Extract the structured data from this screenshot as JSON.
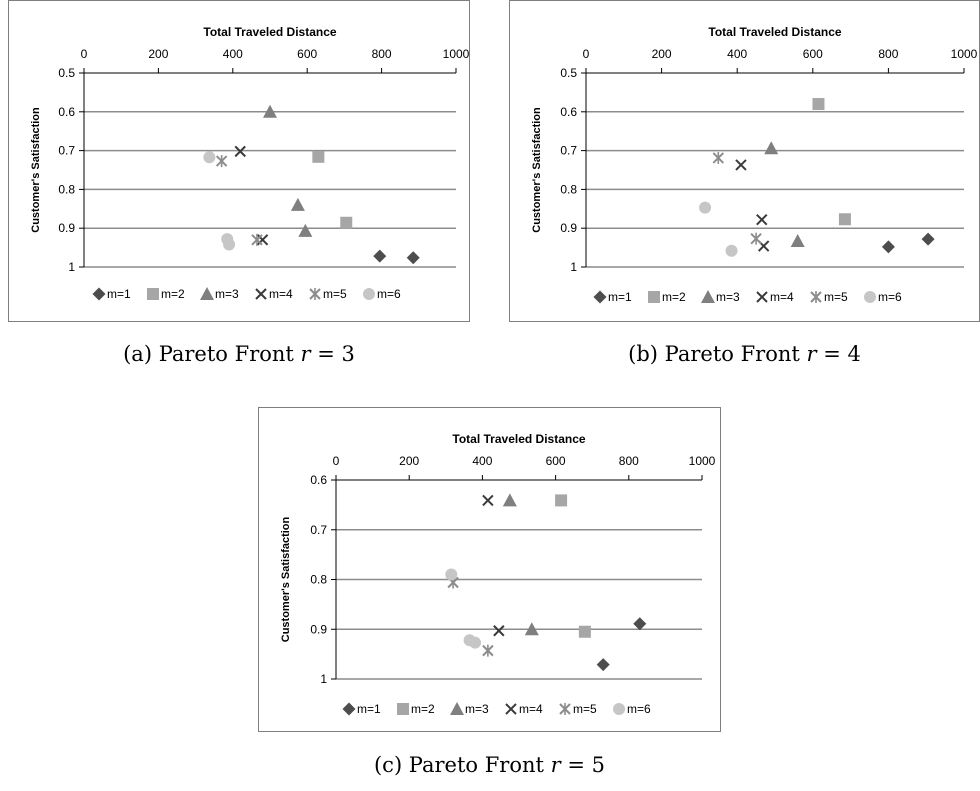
{
  "chart_data": [
    {
      "type": "scatter",
      "panel": "a",
      "title": "Total Traveled Distance",
      "ylabel": "Customer's Satisfaction",
      "xlim": [
        0,
        1000
      ],
      "ylim": [
        0.5,
        1
      ],
      "y_reversed": true,
      "x_axis_position": "top",
      "x_ticks": [
        0,
        200,
        400,
        600,
        800,
        1000
      ],
      "y_ticks": [
        0.5,
        0.6,
        0.7,
        0.8,
        0.9,
        1
      ],
      "y_tick_labels": [
        "0.5",
        "0.6",
        "0.7",
        "0.8",
        "0.9",
        "1"
      ],
      "grid": true,
      "legend": "bottom",
      "series": [
        {
          "name": "m=1",
          "marker": "diamond",
          "points": [
            [
              795,
              0.972
            ],
            [
              885,
              0.976
            ]
          ]
        },
        {
          "name": "m=2",
          "marker": "square",
          "points": [
            [
              630,
              0.716
            ],
            [
              705,
              0.886
            ]
          ]
        },
        {
          "name": "m=3",
          "marker": "triangle",
          "points": [
            [
              500,
              0.6
            ],
            [
              575,
              0.84
            ],
            [
              595,
              0.907
            ]
          ]
        },
        {
          "name": "m=4",
          "marker": "x",
          "points": [
            [
              420,
              0.702
            ],
            [
              480,
              0.93
            ]
          ]
        },
        {
          "name": "m=5",
          "marker": "star",
          "points": [
            [
              370,
              0.727
            ],
            [
              465,
              0.93
            ]
          ]
        },
        {
          "name": "m=6",
          "marker": "circle",
          "points": [
            [
              337,
              0.717
            ],
            [
              385,
              0.928
            ],
            [
              390,
              0.942
            ]
          ]
        }
      ]
    },
    {
      "type": "scatter",
      "panel": "b",
      "title": "Total Traveled Distance",
      "ylabel": "Customer's Satisfaction",
      "xlim": [
        0,
        1000
      ],
      "ylim": [
        0.5,
        1
      ],
      "y_reversed": true,
      "x_axis_position": "top",
      "x_ticks": [
        0,
        200,
        400,
        600,
        800,
        1000
      ],
      "y_ticks": [
        0.5,
        0.6,
        0.7,
        0.8,
        0.9,
        1
      ],
      "y_tick_labels": [
        "0.5",
        "0.6",
        "0.7",
        "0.8",
        "0.9",
        "1"
      ],
      "grid": true,
      "legend": "bottom",
      "series": [
        {
          "name": "m=1",
          "marker": "diamond",
          "points": [
            [
              800,
              0.948
            ],
            [
              905,
              0.928
            ]
          ]
        },
        {
          "name": "m=2",
          "marker": "square",
          "points": [
            [
              615,
              0.58
            ],
            [
              685,
              0.877
            ]
          ]
        },
        {
          "name": "m=3",
          "marker": "triangle",
          "points": [
            [
              490,
              0.694
            ],
            [
              560,
              0.933
            ]
          ]
        },
        {
          "name": "m=4",
          "marker": "x",
          "points": [
            [
              410,
              0.737
            ],
            [
              465,
              0.878
            ],
            [
              470,
              0.946
            ]
          ]
        },
        {
          "name": "m=5",
          "marker": "star",
          "points": [
            [
              350,
              0.719
            ],
            [
              450,
              0.927
            ]
          ]
        },
        {
          "name": "m=6",
          "marker": "circle",
          "points": [
            [
              315,
              0.847
            ],
            [
              385,
              0.958
            ]
          ]
        }
      ]
    },
    {
      "type": "scatter",
      "panel": "c",
      "title": "Total Traveled Distance",
      "ylabel": "Customer's Satisfaction",
      "xlim": [
        0,
        1000
      ],
      "ylim": [
        0.6,
        1
      ],
      "y_reversed": true,
      "x_axis_position": "top",
      "x_ticks": [
        0,
        200,
        400,
        600,
        800,
        1000
      ],
      "y_ticks": [
        0.6,
        0.7,
        0.8,
        0.9,
        1
      ],
      "y_tick_labels": [
        "0.6",
        "0.7",
        "0.8",
        "0.9",
        "1"
      ],
      "grid": true,
      "legend": "bottom",
      "series": [
        {
          "name": "m=1",
          "marker": "diamond",
          "points": [
            [
              730,
              0.971
            ],
            [
              830,
              0.889
            ]
          ]
        },
        {
          "name": "m=2",
          "marker": "square",
          "points": [
            [
              615,
              0.641
            ],
            [
              680,
              0.905
            ]
          ]
        },
        {
          "name": "m=3",
          "marker": "triangle",
          "points": [
            [
              475,
              0.641
            ],
            [
              535,
              0.9
            ]
          ]
        },
        {
          "name": "m=4",
          "marker": "x",
          "points": [
            [
              415,
              0.641
            ],
            [
              445,
              0.903
            ]
          ]
        },
        {
          "name": "m=5",
          "marker": "star",
          "points": [
            [
              320,
              0.806
            ],
            [
              415,
              0.943
            ]
          ]
        },
        {
          "name": "m=6",
          "marker": "circle",
          "points": [
            [
              315,
              0.79
            ],
            [
              365,
              0.922
            ],
            [
              380,
              0.927
            ]
          ]
        }
      ]
    }
  ],
  "colors": {
    "m=1": "#4d4d4d",
    "m=2": "#a6a6a6",
    "m=3": "#7f7f7f",
    "m=4": "#3a3a3a",
    "m=5": "#8c8c8c",
    "m=6": "#c6c6c6",
    "grid": "#8c8c8c",
    "border": "#7f7f7f"
  },
  "captions": {
    "a": {
      "label": "(a) Pareto Front ",
      "var": "r",
      "rest": " = 3"
    },
    "b": {
      "label": "(b) Pareto Front ",
      "var": "r",
      "rest": " = 4"
    },
    "c": {
      "label": "(c) Pareto Front ",
      "var": "r",
      "rest": " = 5"
    }
  }
}
